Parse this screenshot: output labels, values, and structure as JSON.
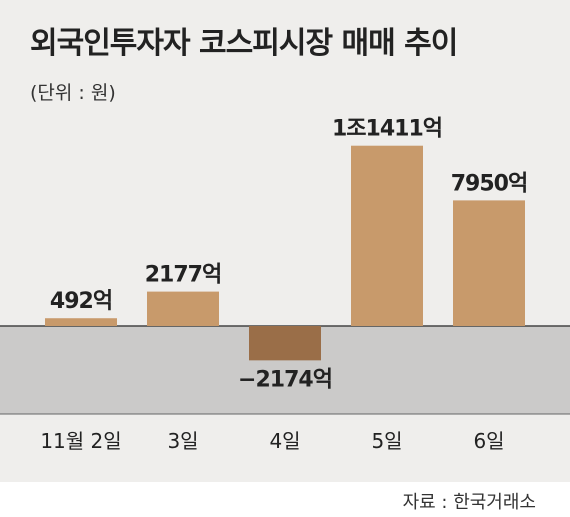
{
  "title": "외국인투자자 코스피시장 매매 추이",
  "unit": "(단위 : 원)",
  "source": "자료 : 한국거래소",
  "colors": {
    "positive": "#c89a6b",
    "negative": "#9a6e48",
    "negative_zone": "#cbcac9",
    "panel": "#efeeec"
  },
  "chart_data": {
    "type": "bar",
    "categories": [
      "11월 2일",
      "3일",
      "4일",
      "5일",
      "6일"
    ],
    "values": [
      492,
      2177,
      -2174,
      11411,
      7950
    ],
    "value_labels": [
      "492억",
      "2177억",
      "−2174억",
      "1조1411억",
      "7950억"
    ],
    "title": "외국인투자자 코스피시장 매매 추이",
    "xlabel": "",
    "ylabel": "(단위 : 원)",
    "grid": false,
    "legend": "none"
  }
}
